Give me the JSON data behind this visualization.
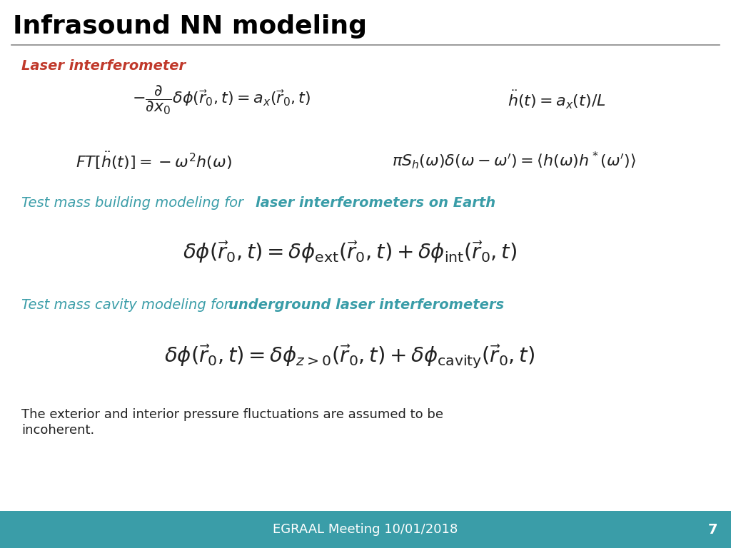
{
  "title": "Infrasound NN modeling",
  "title_color": "#000000",
  "title_fontsize": 26,
  "bg_color": "#ffffff",
  "header_line_color": "#888888",
  "teal_color": "#3a9da8",
  "red_color": "#c0392b",
  "footer_bg_color": "#3a9da8",
  "footer_text": "EGRAAL Meeting 10/01/2018",
  "footer_page": "7",
  "footer_text_color": "#ffffff",
  "label_laser": "Laser interferometer",
  "text_building_normal": "Test mass building modeling for ",
  "text_building_bold": "laser interferometers on Earth",
  "text_cavity_normal": "Test mass cavity modeling for ",
  "text_cavity_bold": "underground laser interferometers",
  "footer_note_line1": "The exterior and interior pressure fluctuations are assumed to be",
  "footer_note_line2": "incoherent."
}
